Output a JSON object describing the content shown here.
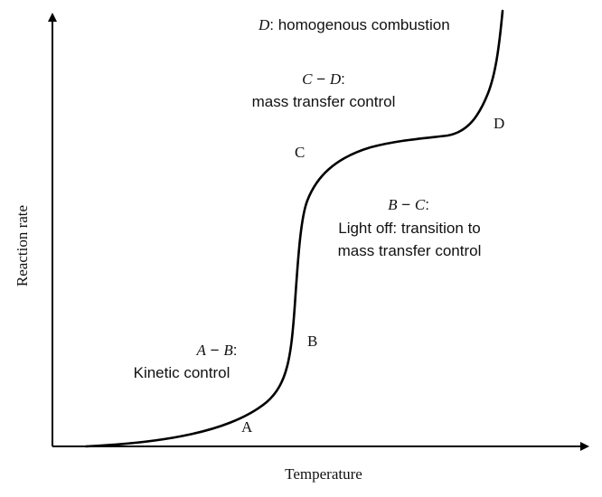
{
  "axes": {
    "x_label": "Temperature",
    "y_label": "Reaction rate"
  },
  "points": {
    "a": "A",
    "b": "B",
    "c": "C",
    "d": "D"
  },
  "regions": {
    "ab": {
      "symbol_left": "A",
      "dash": " − ",
      "symbol_right": "B",
      "colon": ":",
      "desc": "Kinetic control"
    },
    "bc": {
      "symbol_left": "B",
      "dash": " − ",
      "symbol_right": "C",
      "colon": ":",
      "desc_line1": "Light off: transition to",
      "desc_line2": "mass transfer control"
    },
    "cd": {
      "symbol_left": "C",
      "dash": " − ",
      "symbol_right": "D",
      "colon": ":",
      "desc": "mass transfer control"
    },
    "d": {
      "symbol": "D",
      "desc": ": homogenous combustion"
    }
  }
}
